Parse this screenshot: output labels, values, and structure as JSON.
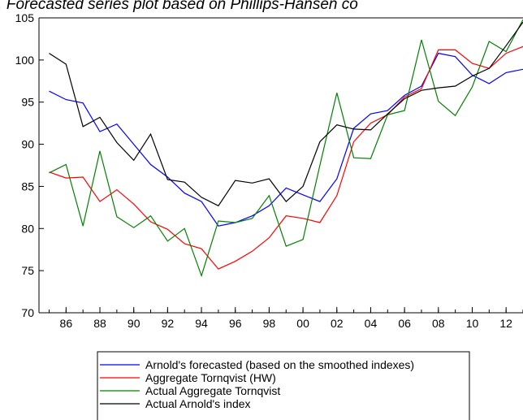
{
  "chart_data": {
    "type": "line",
    "title": "f. Forecasted series plot based on Phillips-Hansen co",
    "x": [
      1985,
      1986,
      1987,
      1988,
      1989,
      1990,
      1991,
      1992,
      1993,
      1994,
      1995,
      1996,
      1997,
      1998,
      1999,
      2000,
      2001,
      2002,
      2003,
      2004,
      2005,
      2006,
      2007,
      2008,
      2009,
      2010,
      2011,
      2012,
      2013
    ],
    "xlim": [
      1984.4,
      2013
    ],
    "xticks": [
      {
        "value": 1986,
        "label": "86"
      },
      {
        "value": 1988,
        "label": "88"
      },
      {
        "value": 1990,
        "label": "90"
      },
      {
        "value": 1992,
        "label": "92"
      },
      {
        "value": 1994,
        "label": "94"
      },
      {
        "value": 1996,
        "label": "96"
      },
      {
        "value": 1998,
        "label": "98"
      },
      {
        "value": 2000,
        "label": "00"
      },
      {
        "value": 2002,
        "label": "02"
      },
      {
        "value": 2004,
        "label": "04"
      },
      {
        "value": 2006,
        "label": "06"
      },
      {
        "value": 2008,
        "label": "08"
      },
      {
        "value": 2010,
        "label": "10"
      },
      {
        "value": 2012,
        "label": "12"
      }
    ],
    "ylim": [
      70,
      105
    ],
    "yticks": [
      70,
      75,
      80,
      85,
      90,
      95,
      100,
      105
    ],
    "series": [
      {
        "name": "Arnold's forecasted (based on the smoothed indexes)",
        "color": "#0000ff",
        "values": [
          96.3,
          95.3,
          94.9,
          91.5,
          92.4,
          90.0,
          87.6,
          86.1,
          84.2,
          83.2,
          80.3,
          80.7,
          81.5,
          82.7,
          84.8,
          84.0,
          83.2,
          85.9,
          91.9,
          93.6,
          94.0,
          95.8,
          96.9,
          100.8,
          100.4,
          98.2,
          97.2,
          98.5,
          98.9
        ]
      },
      {
        "name": "Aggregate Tornqvist (HW)",
        "color": "#ff0000",
        "values": [
          86.7,
          86.0,
          86.1,
          83.2,
          84.6,
          82.9,
          80.8,
          79.9,
          78.2,
          77.6,
          75.2,
          76.1,
          77.3,
          78.9,
          81.5,
          81.2,
          80.7,
          83.9,
          90.3,
          92.5,
          93.5,
          95.6,
          96.6,
          101.2,
          101.2,
          99.6,
          99.0,
          100.8,
          101.6
        ]
      },
      {
        "name": "Actual Aggregate Tornqvist",
        "color": "#008000",
        "values": [
          86.6,
          87.6,
          80.3,
          89.2,
          81.4,
          80.1,
          81.5,
          78.5,
          80.0,
          74.4,
          80.9,
          80.7,
          81.2,
          83.9,
          77.9,
          78.7,
          87.5,
          96.1,
          88.4,
          88.3,
          93.5,
          94.0,
          102.4,
          95.1,
          93.4,
          96.8,
          102.2,
          101.0,
          104.8
        ]
      },
      {
        "name": "Actual Arnold's index",
        "color": "#000000",
        "values": [
          100.8,
          99.5,
          92.1,
          93.2,
          90.2,
          88.1,
          91.2,
          85.8,
          85.5,
          83.7,
          82.7,
          85.7,
          85.4,
          85.9,
          83.2,
          85.0,
          90.3,
          92.3,
          91.8,
          91.7,
          93.6,
          95.4,
          96.4,
          96.7,
          96.9,
          98.1,
          99.0,
          101.7,
          104.5
        ]
      }
    ]
  }
}
